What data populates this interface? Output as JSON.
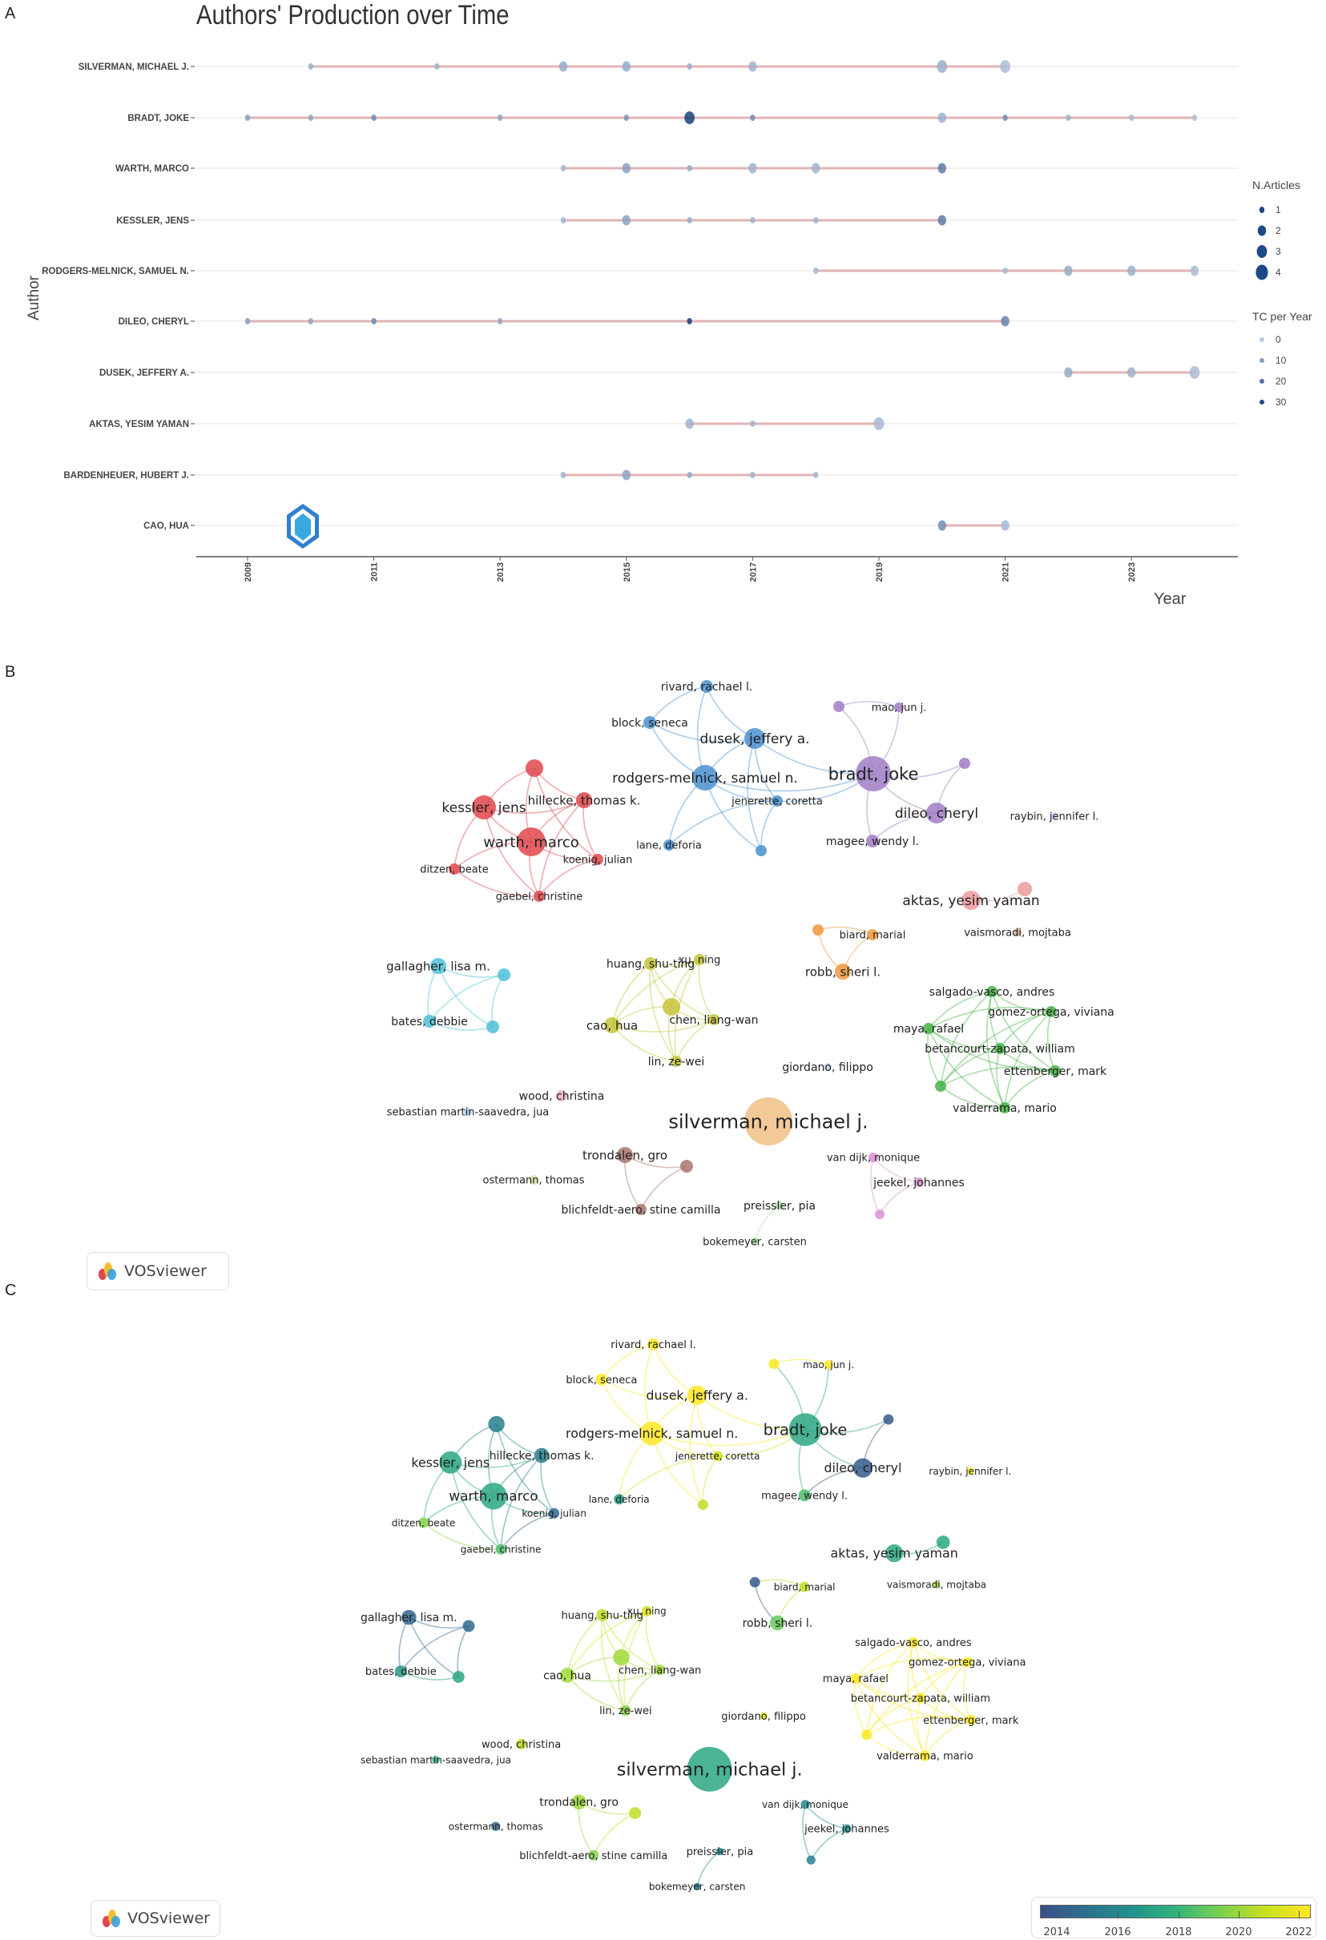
{
  "panels": {
    "a": "A",
    "b": "B",
    "c": "C"
  },
  "chart_data": {
    "type": "scatter",
    "title": "Authors' Production over Time",
    "xlabel": "Year",
    "ylabel": "Author",
    "xlim": [
      2009,
      2024
    ],
    "x_ticks": [
      "2009",
      "2011",
      "2013",
      "2015",
      "2017",
      "2019",
      "2021",
      "2023"
    ],
    "grid": true,
    "legend_placement": "right",
    "legend": {
      "size_title": "N.Articles",
      "size_levels": [
        "1",
        "2",
        "3",
        "4"
      ],
      "color_title": "TC per Year",
      "color_levels": [
        "0",
        "10",
        "20",
        "30"
      ]
    },
    "colors": {
      "segment": "#e2b4b4",
      "tc_low": "#b9c9de",
      "tc_high": "#173f7a"
    },
    "series": [
      {
        "name": "SILVERMAN, MICHAEL J.",
        "years": [
          2010,
          2012,
          2014,
          2015,
          2016,
          2017,
          2020,
          2021
        ],
        "n_articles": [
          1,
          1,
          2,
          2,
          1,
          2,
          3,
          3
        ],
        "tc_per_year": [
          6,
          5,
          7,
          7,
          6,
          5,
          6,
          3
        ]
      },
      {
        "name": "BRADT, JOKE",
        "years": [
          2009,
          2010,
          2011,
          2013,
          2015,
          2016,
          2017,
          2020,
          2021,
          2022,
          2023,
          2024
        ],
        "n_articles": [
          1,
          1,
          1,
          1,
          1,
          3,
          1,
          2,
          1,
          1,
          1,
          1
        ],
        "tc_per_year": [
          10,
          8,
          15,
          8,
          12,
          32,
          14,
          6,
          14,
          5,
          4,
          2
        ]
      },
      {
        "name": "WARTH, MARCO",
        "years": [
          2014,
          2015,
          2016,
          2017,
          2018,
          2020
        ],
        "n_articles": [
          1,
          2,
          1,
          2,
          2,
          2
        ],
        "tc_per_year": [
          5,
          9,
          7,
          5,
          5,
          18
        ]
      },
      {
        "name": "KESSLER, JENS",
        "years": [
          2014,
          2015,
          2016,
          2017,
          2018,
          2020
        ],
        "n_articles": [
          1,
          2,
          1,
          1,
          1,
          2
        ],
        "tc_per_year": [
          5,
          9,
          7,
          5,
          5,
          18
        ]
      },
      {
        "name": "RODGERS-MELNICK, SAMUEL N.",
        "years": [
          2018,
          2021,
          2022,
          2023,
          2024
        ],
        "n_articles": [
          1,
          1,
          2,
          2,
          2
        ],
        "tc_per_year": [
          4,
          4,
          7,
          6,
          3
        ]
      },
      {
        "name": "DILEO, CHERYL",
        "years": [
          2009,
          2010,
          2011,
          2013,
          2016,
          2021
        ],
        "n_articles": [
          1,
          1,
          1,
          1,
          1,
          2
        ],
        "tc_per_year": [
          10,
          8,
          15,
          8,
          32,
          16
        ]
      },
      {
        "name": "DUSEK, JEFFERY A.",
        "years": [
          2022,
          2023,
          2024
        ],
        "n_articles": [
          2,
          2,
          3
        ],
        "tc_per_year": [
          7,
          6,
          3
        ]
      },
      {
        "name": "AKTAS, YESIM YAMAN",
        "years": [
          2016,
          2017,
          2019
        ],
        "n_articles": [
          2,
          1,
          3
        ],
        "tc_per_year": [
          5,
          5,
          4
        ]
      },
      {
        "name": "BARDENHEUER, HUBERT J.",
        "years": [
          2014,
          2015,
          2016,
          2017,
          2018
        ],
        "n_articles": [
          1,
          2,
          1,
          1,
          1
        ],
        "tc_per_year": [
          5,
          9,
          7,
          5,
          5
        ]
      },
      {
        "name": "CAO, HUA",
        "years": [
          2020,
          2021
        ],
        "n_articles": [
          2,
          2
        ],
        "tc_per_year": [
          14,
          4
        ]
      }
    ]
  },
  "network": {
    "logo": "VOSviewer",
    "cluster_colors": {
      "red": "#e0474c",
      "blue": "#4a90d0",
      "purple": "#a07cc5",
      "salmon": "#ec9a9a",
      "tan": "#d8a890",
      "orange": "#f0963c",
      "cyan": "#4cc0d8",
      "olive": "#c4c43a",
      "green": "#46b346",
      "paleblue": "#c4d6f0",
      "pink": "#eab0c8",
      "palecyan": "#a4d2e8",
      "peach": "#f1bf86",
      "brown": "#a8756c",
      "palelime": "#d8e0a0",
      "lightgreen": "#a8dca0",
      "magenta": "#d890d0"
    },
    "overlay_scale": {
      "min_year": 2014,
      "max_year": 2022,
      "ticks": [
        "2014",
        "2016",
        "2018",
        "2020",
        "2022"
      ]
    },
    "nodes": [
      {
        "label": "rivard, rachael l.",
        "cluster": "blue",
        "year": 2022
      },
      {
        "label": "block, seneca",
        "cluster": "blue",
        "year": 2022
      },
      {
        "label": "dusek, jeffery a.",
        "cluster": "blue",
        "year": 2022
      },
      {
        "label": "rodgers-melnick, samuel n.",
        "cluster": "blue",
        "year": 2022
      },
      {
        "label": "jenerette, coretta",
        "cluster": "blue",
        "year": 2021
      },
      {
        "label": "lane, deforia",
        "cluster": "blue",
        "year": 2017
      },
      {
        "label": "",
        "cluster": "blue",
        "year": 2020.5
      },
      {
        "label": "bradt, joke",
        "cluster": "purple",
        "year": 2017.5
      },
      {
        "label": "mao, jun j.",
        "cluster": "purple",
        "year": 2022
      },
      {
        "label": "",
        "cluster": "purple",
        "year": 2022
      },
      {
        "label": "",
        "cluster": "purple",
        "year": 2014.5
      },
      {
        "label": "dileo, cheryl",
        "cluster": "purple",
        "year": 2014.5
      },
      {
        "label": "magee, wendy l.",
        "cluster": "purple",
        "year": 2018.5
      },
      {
        "label": "raybin, jennifer l.",
        "cluster": "paleblue",
        "year": 2022
      },
      {
        "label": "",
        "cluster": "red",
        "year": 2016
      },
      {
        "label": "kessler, jens",
        "cluster": "red",
        "year": 2017.5
      },
      {
        "label": "hillecke, thomas k.",
        "cluster": "red",
        "year": 2016
      },
      {
        "label": "warth, marco",
        "cluster": "red",
        "year": 2017.5
      },
      {
        "label": "koenig, julian",
        "cluster": "red",
        "year": 2015
      },
      {
        "label": "ditzen, beate",
        "cluster": "red",
        "year": 2019.5
      },
      {
        "label": "gaebel, christine",
        "cluster": "red",
        "year": 2018.5
      },
      {
        "label": "aktas, yesim yaman",
        "cluster": "salmon",
        "year": 2017.5
      },
      {
        "label": "",
        "cluster": "salmon",
        "year": 2017.5
      },
      {
        "label": "vaismoradi, mojtaba",
        "cluster": "tan",
        "year": 2020
      },
      {
        "label": "biard, marial",
        "cluster": "orange",
        "year": 2020.5
      },
      {
        "label": "",
        "cluster": "orange",
        "year": 2014.5
      },
      {
        "label": "robb, sheri l.",
        "cluster": "orange",
        "year": 2019
      },
      {
        "label": "gallagher, lisa m.",
        "cluster": "cyan",
        "year": 2015
      },
      {
        "label": "",
        "cluster": "cyan",
        "year": 2015
      },
      {
        "label": "bates, debbie",
        "cluster": "cyan",
        "year": 2017
      },
      {
        "label": "",
        "cluster": "cyan",
        "year": 2017.5
      },
      {
        "label": "huang, shu-ting",
        "cluster": "olive",
        "year": 2020.5
      },
      {
        "label": "xu, ning",
        "cluster": "olive",
        "year": 2021
      },
      {
        "label": "",
        "cluster": "olive",
        "year": 2020
      },
      {
        "label": "cao, hua",
        "cluster": "olive",
        "year": 2020
      },
      {
        "label": "chen, liang-wan",
        "cluster": "olive",
        "year": 2020
      },
      {
        "label": "lin, ze-wei",
        "cluster": "olive",
        "year": 2019.5
      },
      {
        "label": "salgado-vasco, andres",
        "cluster": "green",
        "year": 2022
      },
      {
        "label": "gomez-ortega, viviana",
        "cluster": "green",
        "year": 2022
      },
      {
        "label": "maya, rafael",
        "cluster": "green",
        "year": 2022
      },
      {
        "label": "betancourt-zapata, william",
        "cluster": "green",
        "year": 2022
      },
      {
        "label": "ettenberger, mark",
        "cluster": "green",
        "year": 2022
      },
      {
        "label": "",
        "cluster": "green",
        "year": 2022
      },
      {
        "label": "valderrama, mario",
        "cluster": "green",
        "year": 2022
      },
      {
        "label": "giordano, filippo",
        "cluster": "paleblue",
        "year": 2021.5
      },
      {
        "label": "wood, christina",
        "cluster": "pink",
        "year": 2020.5
      },
      {
        "label": "sebastian martin-saavedra, jua",
        "cluster": "palecyan",
        "year": 2018
      },
      {
        "label": "silverman, michael j.",
        "cluster": "peach",
        "year": 2017.5
      },
      {
        "label": "trondalen, gro",
        "cluster": "brown",
        "year": 2020
      },
      {
        "label": "",
        "cluster": "brown",
        "year": 2020.5
      },
      {
        "label": "blichfeldt-aero, stine camilla",
        "cluster": "brown",
        "year": 2019.5
      },
      {
        "label": "ostermann, thomas",
        "cluster": "palelime",
        "year": 2015
      },
      {
        "label": "preissler, pia",
        "cluster": "lightgreen",
        "year": 2016.5
      },
      {
        "label": "bokemeyer, carsten",
        "cluster": "lightgreen",
        "year": 2016
      },
      {
        "label": "van dijk, monique",
        "cluster": "magenta",
        "year": 2016.5
      },
      {
        "label": "jeekel, johannes",
        "cluster": "magenta",
        "year": 2016.5
      },
      {
        "label": "",
        "cluster": "magenta",
        "year": 2016
      }
    ]
  }
}
